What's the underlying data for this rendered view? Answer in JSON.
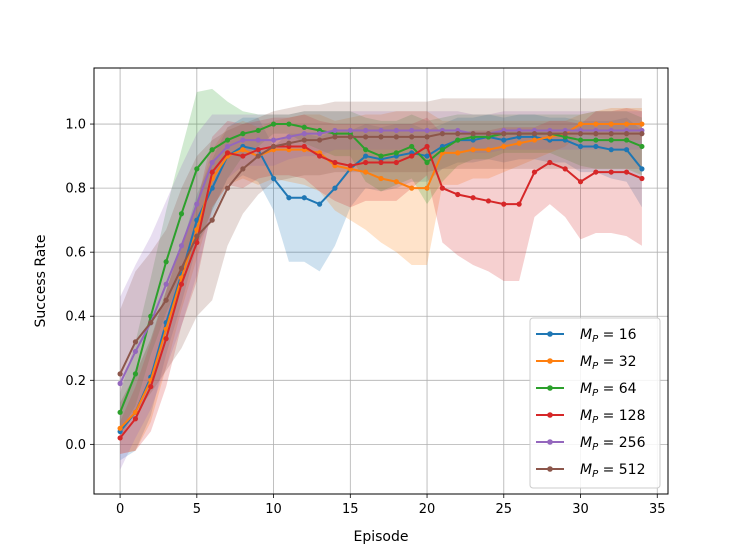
{
  "chart_data": {
    "type": "line",
    "title": "",
    "xlabel": "Episode",
    "ylabel": "Success Rate",
    "xlim": [
      -1.7,
      35.7
    ],
    "ylim": [
      -0.155,
      1.175
    ],
    "xticks": [
      0,
      5,
      10,
      15,
      20,
      25,
      30,
      35
    ],
    "yticks": [
      0.0,
      0.2,
      0.4,
      0.6,
      0.8,
      1.0
    ],
    "xtick_labels": [
      "0",
      "5",
      "10",
      "15",
      "20",
      "25",
      "30",
      "35"
    ],
    "ytick_labels": [
      "0.0",
      "0.2",
      "0.4",
      "0.6",
      "0.8",
      "1.0"
    ],
    "grid": true,
    "legend_position": "lower-right",
    "x": [
      0,
      1,
      2,
      3,
      4,
      5,
      6,
      7,
      8,
      9,
      10,
      11,
      12,
      13,
      14,
      15,
      16,
      17,
      18,
      19,
      20,
      21,
      22,
      23,
      24,
      25,
      26,
      27,
      28,
      29,
      30,
      31,
      32,
      33,
      34
    ],
    "series": [
      {
        "name": "M_P = 16",
        "legend_main": "M",
        "legend_sub": "P",
        "legend_value": " = 16",
        "color": "#1f77b4",
        "values": [
          0.04,
          0.1,
          0.21,
          0.38,
          0.53,
          0.7,
          0.8,
          0.9,
          0.93,
          0.92,
          0.83,
          0.77,
          0.77,
          0.75,
          0.8,
          0.86,
          0.9,
          0.89,
          0.9,
          0.91,
          0.9,
          0.93,
          0.95,
          0.95,
          0.96,
          0.95,
          0.96,
          0.96,
          0.95,
          0.95,
          0.93,
          0.93,
          0.92,
          0.92,
          0.86
        ],
        "band": [
          0.09,
          0.12,
          0.12,
          0.1,
          0.09,
          0.08,
          0.09,
          0.09,
          0.09,
          0.1,
          0.1,
          0.2,
          0.2,
          0.21,
          0.18,
          0.12,
          0.1,
          0.1,
          0.1,
          0.09,
          0.08,
          0.07,
          0.07,
          0.07,
          0.07,
          0.07,
          0.07,
          0.07,
          0.07,
          0.07,
          0.08,
          0.08,
          0.09,
          0.1,
          0.12
        ]
      },
      {
        "name": "M_P = 32",
        "legend_main": "M",
        "legend_sub": "P",
        "legend_value": " = 32",
        "color": "#ff7f0e",
        "values": [
          0.05,
          0.1,
          0.2,
          0.36,
          0.52,
          0.67,
          0.83,
          0.9,
          0.92,
          0.9,
          0.92,
          0.92,
          0.92,
          0.91,
          0.87,
          0.86,
          0.85,
          0.83,
          0.82,
          0.8,
          0.8,
          0.91,
          0.91,
          0.92,
          0.92,
          0.93,
          0.94,
          0.95,
          0.96,
          0.97,
          1.0,
          1.0,
          1.0,
          1.0,
          1.0
        ],
        "band": [
          0.08,
          0.12,
          0.13,
          0.12,
          0.1,
          0.09,
          0.09,
          0.09,
          0.09,
          0.09,
          0.09,
          0.1,
          0.11,
          0.12,
          0.14,
          0.16,
          0.18,
          0.2,
          0.22,
          0.24,
          0.24,
          0.1,
          0.1,
          0.09,
          0.09,
          0.08,
          0.07,
          0.06,
          0.05,
          0.04,
          0.03,
          0.04,
          0.05,
          0.05,
          0.05
        ]
      },
      {
        "name": "M_P = 64",
        "legend_main": "M",
        "legend_sub": "P",
        "legend_value": " = 64",
        "color": "#2ca02c",
        "values": [
          0.1,
          0.22,
          0.4,
          0.57,
          0.72,
          0.86,
          0.92,
          0.95,
          0.97,
          0.98,
          1.0,
          1.0,
          0.99,
          0.98,
          0.97,
          0.97,
          0.92,
          0.9,
          0.91,
          0.93,
          0.88,
          0.92,
          0.95,
          0.96,
          0.96,
          0.97,
          0.97,
          0.97,
          0.97,
          0.96,
          0.95,
          0.95,
          0.95,
          0.95,
          0.93
        ],
        "band": [
          0.06,
          0.1,
          0.12,
          0.16,
          0.2,
          0.24,
          0.19,
          0.12,
          0.07,
          0.05,
          0.03,
          0.03,
          0.05,
          0.06,
          0.07,
          0.07,
          0.1,
          0.11,
          0.1,
          0.1,
          0.13,
          0.1,
          0.08,
          0.07,
          0.07,
          0.06,
          0.06,
          0.06,
          0.06,
          0.07,
          0.08,
          0.09,
          0.09,
          0.09,
          0.09
        ]
      },
      {
        "name": "M_P = 128",
        "legend_main": "M",
        "legend_sub": "P",
        "legend_value": " = 128",
        "color": "#d62728",
        "values": [
          0.02,
          0.08,
          0.18,
          0.33,
          0.5,
          0.63,
          0.85,
          0.91,
          0.9,
          0.92,
          0.93,
          0.93,
          0.93,
          0.9,
          0.88,
          0.87,
          0.88,
          0.88,
          0.88,
          0.9,
          0.93,
          0.8,
          0.78,
          0.77,
          0.76,
          0.75,
          0.75,
          0.85,
          0.88,
          0.86,
          0.82,
          0.85,
          0.85,
          0.85,
          0.83
        ],
        "band": [
          0.05,
          0.1,
          0.14,
          0.15,
          0.13,
          0.12,
          0.11,
          0.1,
          0.1,
          0.09,
          0.09,
          0.09,
          0.1,
          0.11,
          0.12,
          0.13,
          0.12,
          0.12,
          0.12,
          0.1,
          0.09,
          0.17,
          0.19,
          0.21,
          0.22,
          0.24,
          0.24,
          0.14,
          0.13,
          0.15,
          0.18,
          0.19,
          0.19,
          0.2,
          0.21
        ]
      },
      {
        "name": "M_P = 256",
        "legend_main": "M",
        "legend_sub": "P",
        "legend_value": " = 256",
        "color": "#9467bd",
        "values": [
          0.19,
          0.29,
          0.38,
          0.5,
          0.62,
          0.75,
          0.88,
          0.93,
          0.95,
          0.95,
          0.95,
          0.96,
          0.97,
          0.97,
          0.98,
          0.98,
          0.98,
          0.98,
          0.98,
          0.98,
          0.98,
          0.98,
          0.98,
          0.97,
          0.97,
          0.98,
          0.98,
          0.98,
          0.98,
          0.98,
          0.98,
          0.98,
          0.98,
          0.98,
          0.98
        ],
        "band": [
          0.27,
          0.27,
          0.27,
          0.26,
          0.25,
          0.22,
          0.15,
          0.1,
          0.08,
          0.08,
          0.08,
          0.07,
          0.07,
          0.07,
          0.06,
          0.06,
          0.06,
          0.06,
          0.06,
          0.06,
          0.06,
          0.06,
          0.06,
          0.06,
          0.06,
          0.06,
          0.06,
          0.06,
          0.06,
          0.06,
          0.06,
          0.06,
          0.06,
          0.06,
          0.06
        ]
      },
      {
        "name": "M_P = 512",
        "legend_main": "M",
        "legend_sub": "P",
        "legend_value": " = 512",
        "color": "#8c564b",
        "values": [
          0.22,
          0.32,
          0.38,
          0.45,
          0.55,
          0.65,
          0.7,
          0.8,
          0.86,
          0.9,
          0.93,
          0.94,
          0.95,
          0.95,
          0.96,
          0.96,
          0.96,
          0.96,
          0.96,
          0.96,
          0.96,
          0.97,
          0.97,
          0.97,
          0.97,
          0.97,
          0.97,
          0.97,
          0.97,
          0.97,
          0.97,
          0.97,
          0.97,
          0.97,
          0.97
        ],
        "band": [
          0.2,
          0.22,
          0.22,
          0.22,
          0.25,
          0.25,
          0.25,
          0.18,
          0.14,
          0.12,
          0.11,
          0.11,
          0.11,
          0.11,
          0.11,
          0.11,
          0.11,
          0.11,
          0.11,
          0.11,
          0.11,
          0.11,
          0.11,
          0.11,
          0.11,
          0.11,
          0.11,
          0.11,
          0.11,
          0.11,
          0.11,
          0.11,
          0.11,
          0.11,
          0.11
        ]
      }
    ]
  }
}
